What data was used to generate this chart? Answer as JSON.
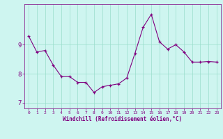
{
  "x": [
    0,
    1,
    2,
    3,
    4,
    5,
    6,
    7,
    8,
    9,
    10,
    11,
    12,
    13,
    14,
    15,
    16,
    17,
    18,
    19,
    20,
    21,
    22,
    23
  ],
  "y": [
    9.3,
    8.75,
    8.8,
    8.3,
    7.9,
    7.9,
    7.7,
    7.7,
    7.35,
    7.55,
    7.6,
    7.65,
    7.85,
    8.7,
    9.6,
    10.05,
    9.1,
    8.85,
    9.0,
    8.75,
    8.4,
    8.4,
    8.42,
    8.4
  ],
  "line_color": "#800080",
  "marker": "+",
  "marker_color": "#800080",
  "bg_color": "#cef5f0",
  "grid_color": "#99ddcc",
  "xlabel": "Windchill (Refroidissement éolien,°C)",
  "xlabel_color": "#800080",
  "tick_color": "#800080",
  "ylim": [
    6.8,
    10.4
  ],
  "xlim": [
    -0.5,
    23.5
  ],
  "yticks": [
    7,
    8,
    9
  ],
  "xticks": [
    0,
    1,
    2,
    3,
    4,
    5,
    6,
    7,
    8,
    9,
    10,
    11,
    12,
    13,
    14,
    15,
    16,
    17,
    18,
    19,
    20,
    21,
    22,
    23
  ],
  "figsize": [
    3.2,
    2.0
  ],
  "dpi": 100
}
